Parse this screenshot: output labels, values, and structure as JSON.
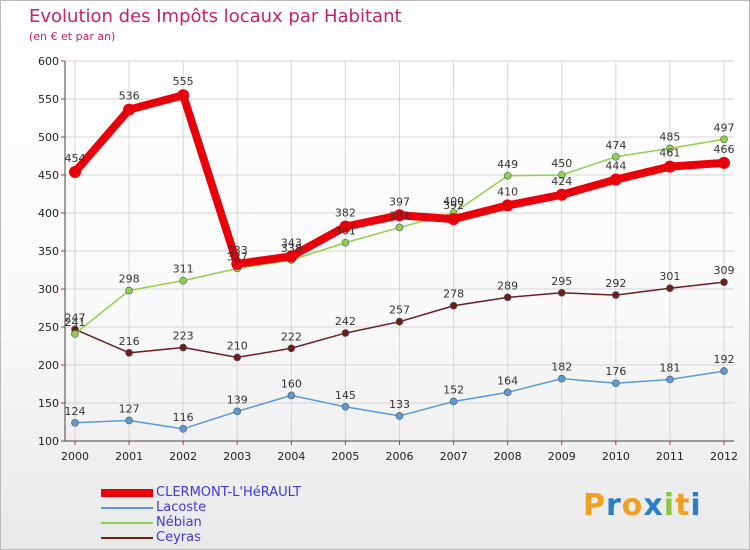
{
  "header": {
    "title": "Evolution des Impôts locaux par Habitant",
    "subtitle": "(en € et par an)"
  },
  "brand": {
    "letters": [
      "P",
      "r",
      "o",
      "x",
      "i",
      "t",
      "i"
    ],
    "colors": [
      "#f0a020",
      "#2a7fc8",
      "#f0a020",
      "#2a7fc8",
      "#8cc63f",
      "#f0a020",
      "#2a7fc8"
    ]
  },
  "colors": {
    "title": "#c8216a",
    "axis_ticks": "#c8216a",
    "grid": "#d6d6d6",
    "legend_text": "#3b3bd6"
  },
  "chart_data": {
    "type": "line",
    "x": [
      "2000",
      "2001",
      "2002",
      "2003",
      "2004",
      "2005",
      "2006",
      "2007",
      "2008",
      "2009",
      "2010",
      "2011",
      "2012"
    ],
    "ylim": [
      100,
      600
    ],
    "yticks": [
      "100",
      "150",
      "200",
      "250",
      "300",
      "350",
      "400",
      "450",
      "500",
      "550",
      "600"
    ],
    "grid": true,
    "legend_position": "bottom-left",
    "series": [
      {
        "name": "CLERMONT-L'HéRAULT",
        "color": "#e8000b",
        "width": 8,
        "point": 6,
        "values": [
          454,
          536,
          555,
          333,
          343,
          382,
          397,
          392,
          410,
          424,
          444,
          461,
          466
        ],
        "labels": [
          "454",
          "536",
          "555",
          "333",
          "343",
          "382",
          "397",
          "392",
          "410",
          "424",
          "444",
          "461",
          "466"
        ]
      },
      {
        "name": "Lacoste",
        "color": "#5b9bd5",
        "width": 1.5,
        "point": 3.5,
        "values": [
          124,
          127,
          116,
          139,
          160,
          145,
          133,
          152,
          164,
          182,
          176,
          181,
          192
        ],
        "labels": [
          "124",
          "127",
          "116",
          "139",
          "160",
          "145",
          "133",
          "152",
          "164",
          "182",
          "176",
          "181",
          "192"
        ]
      },
      {
        "name": "Nébian",
        "color": "#8fd14f",
        "width": 1.5,
        "point": 3.5,
        "values": [
          241,
          298,
          311,
          327,
          338,
          361,
          381,
          400,
          449,
          450,
          474,
          485,
          497
        ],
        "labels": [
          "241",
          "298",
          "311",
          "327",
          "338",
          "361",
          "381",
          "400",
          "449",
          "450",
          "474",
          "485",
          "497"
        ]
      },
      {
        "name": "Ceyras",
        "color": "#6b1e1e",
        "width": 1.5,
        "point": 3.5,
        "values": [
          247,
          216,
          223,
          210,
          222,
          242,
          257,
          278,
          289,
          295,
          292,
          301,
          309
        ],
        "labels": [
          "247",
          "216",
          "223",
          "210",
          "222",
          "242",
          "257",
          "278",
          "289",
          "295",
          "292",
          "301",
          "309"
        ]
      }
    ]
  }
}
